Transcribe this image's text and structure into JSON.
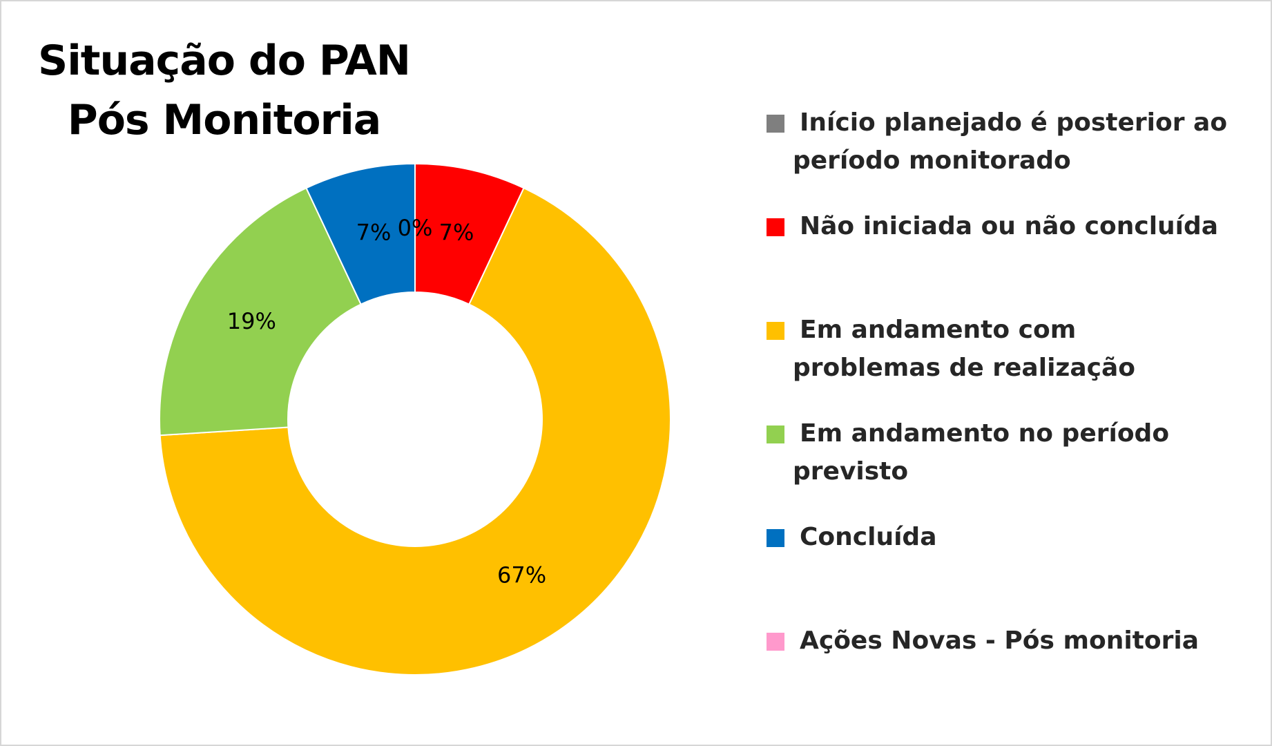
{
  "title_line1": "Situação do PAN",
  "title_line2": "Pós Monitoria",
  "chart_data": {
    "type": "pie",
    "style": "donut",
    "title": "Situação do PAN Pós Monitoria",
    "categories": [
      "Início planejado é posterior ao período monitorado",
      "Não iniciada ou não concluída",
      "Em andamento com problemas de realização",
      "Em andamento no período previsto",
      "Concluída",
      "Ações Novas - Pós monitoria"
    ],
    "values": [
      0,
      7,
      67,
      19,
      7,
      0
    ],
    "labels": [
      "0%",
      "7%",
      "67%",
      "19%",
      "7%",
      ""
    ],
    "colors": [
      "#7f7f7f",
      "#ff0000",
      "#ffc000",
      "#92d050",
      "#0070c0",
      "#ff99cc"
    ],
    "legend": "right",
    "legend_lines": [
      [
        "Início planejado é posterior ao",
        "período monitorado"
      ],
      [
        "Não iniciada ou não concluída"
      ],
      [
        "Em andamento com",
        "problemas de realização"
      ],
      [
        "Em andamento no período",
        "previsto"
      ],
      [
        "Concluída"
      ],
      [
        "Ações Novas - Pós monitoria"
      ]
    ]
  }
}
